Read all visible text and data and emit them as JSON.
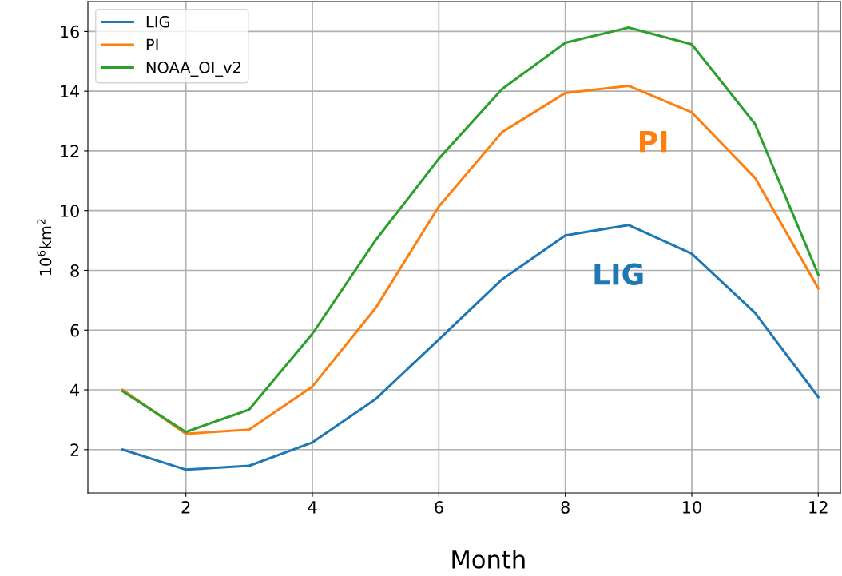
{
  "chart_data": {
    "type": "line",
    "xlabel": "Month",
    "ylabel": "10$^{6}$km$^{2}$",
    "x": [
      1,
      2,
      3,
      4,
      5,
      6,
      7,
      8,
      9,
      10,
      11,
      12
    ],
    "series": [
      {
        "name": "LIG",
        "color": "#1f77b4",
        "values": [
          2.0,
          1.33,
          1.46,
          2.24,
          3.69,
          5.69,
          7.7,
          9.17,
          9.52,
          8.56,
          6.58,
          3.76
        ]
      },
      {
        "name": "PI",
        "color": "#ff7f0e",
        "values": [
          4.0,
          2.53,
          2.67,
          4.11,
          6.74,
          10.14,
          12.63,
          13.94,
          14.18,
          13.29,
          11.1,
          7.4
        ]
      },
      {
        "name": "NOAA_OI_v2",
        "color": "#2ca02c",
        "values": [
          3.95,
          2.59,
          3.34,
          5.88,
          9.01,
          11.74,
          14.07,
          15.62,
          16.13,
          15.57,
          12.9,
          7.86
        ]
      }
    ],
    "annotations": [
      "PI",
      "LIG"
    ],
    "xlim": [
      0.45,
      12.35
    ],
    "ylim": [
      0.55,
      17.0
    ],
    "xticks": [
      2,
      4,
      6,
      8,
      10,
      12
    ],
    "yticks": [
      2,
      4,
      6,
      8,
      10,
      12,
      14,
      16
    ],
    "grid": true,
    "legend": "upper left",
    "marker": "none",
    "line_style": "solid"
  }
}
